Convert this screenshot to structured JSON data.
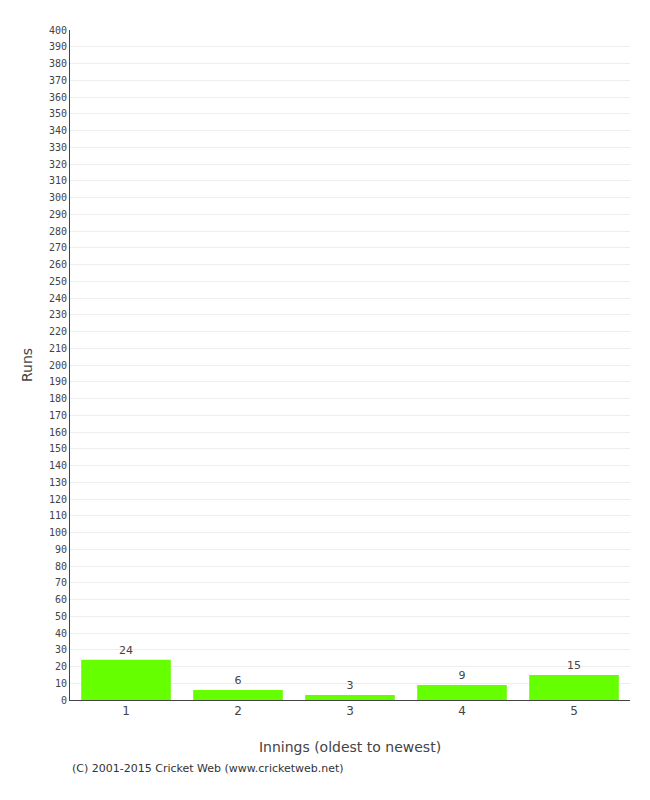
{
  "chart_data": {
    "type": "bar",
    "xlabel": "Innings (oldest to newest)",
    "ylabel": "Runs",
    "annotations": [
      "(C) 2001-2015 Cricket Web (www.cricketweb.net)"
    ],
    "categories": [
      1,
      2,
      3,
      4,
      5
    ],
    "values": [
      24,
      6,
      3,
      9,
      15
    ],
    "color": "#66ff00",
    "ylim": [
      0,
      400
    ],
    "yticks": [
      0,
      10,
      20,
      30,
      40,
      50,
      60,
      70,
      80,
      90,
      100,
      110,
      120,
      130,
      140,
      150,
      160,
      170,
      180,
      190,
      200,
      210,
      220,
      230,
      240,
      250,
      260,
      270,
      280,
      290,
      300,
      310,
      320,
      330,
      340,
      350,
      360,
      370,
      380,
      390,
      400
    ],
    "grid": true,
    "data_labels": true
  }
}
